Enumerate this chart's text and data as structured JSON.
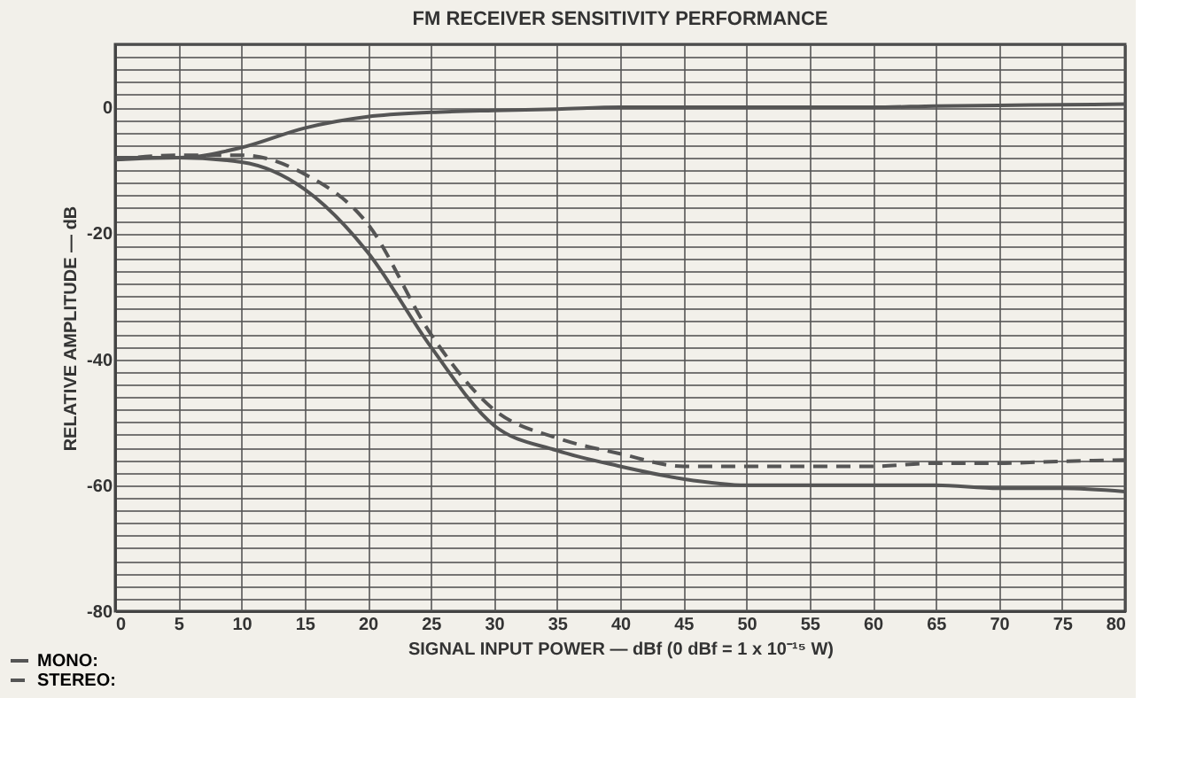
{
  "chart_data": {
    "type": "line",
    "title": "FM RECEIVER SENSITIVITY PERFORMANCE",
    "xlabel": "SIGNAL INPUT POWER — dBf (0 dBf = 1 x 10⁻¹⁵ W)",
    "ylabel": "RELATIVE AMPLITUDE — dB",
    "x": [
      0,
      5,
      10,
      15,
      20,
      25,
      30,
      35,
      40,
      45,
      50,
      55,
      60,
      65,
      70,
      75,
      80
    ],
    "series": [
      {
        "color": "#555555",
        "line_style": "solid",
        "values": [
          -8,
          -8,
          -6.4,
          -3.3,
          -1.5,
          -0.8,
          -0.5,
          -0.3,
          0,
          0,
          0,
          0,
          0,
          0.2,
          0.3,
          0.4,
          0.5
        ]
      },
      {
        "name": "MONO:",
        "color": "#555555",
        "line_style": "solid",
        "values": [
          -8.3,
          -8,
          -8.7,
          -13,
          -23,
          -38,
          -50.5,
          -54.5,
          -57,
          -59,
          -60,
          -60,
          -60,
          -60,
          -60.5,
          -60.5,
          -61
        ]
      },
      {
        "name": "STEREO:",
        "color": "#555555",
        "line_style": "dashed",
        "values": [
          -8.3,
          -7.6,
          -7.6,
          -10.6,
          -18.5,
          -36,
          -48,
          -52.5,
          -55,
          -57,
          -57,
          -57,
          -57,
          -56.5,
          -56.5,
          -56.2,
          -56
        ]
      }
    ],
    "xlim": [
      0,
      80
    ],
    "xticks": [
      0,
      5,
      10,
      15,
      20,
      25,
      30,
      35,
      40,
      45,
      50,
      55,
      60,
      65,
      70,
      75,
      80
    ],
    "ylim": [
      -80,
      10
    ],
    "yticks": [
      -80,
      {
        "value": -78,
        "label": null
      },
      {
        "value": -76,
        "label": null
      },
      {
        "value": -74,
        "label": null
      },
      {
        "value": -72,
        "label": null
      },
      {
        "value": -70,
        "label": null
      },
      {
        "value": -68,
        "label": null
      },
      {
        "value": -66,
        "label": null
      },
      {
        "value": -64,
        "label": null
      },
      {
        "value": -62,
        "label": null
      },
      -60,
      {
        "value": -58,
        "label": null
      },
      {
        "value": -56,
        "label": null
      },
      {
        "value": -54,
        "label": null
      },
      {
        "value": -52,
        "label": null
      },
      {
        "value": -50,
        "label": null
      },
      {
        "value": -48,
        "label": null
      },
      {
        "value": -46,
        "label": null
      },
      {
        "value": -44,
        "label": null
      },
      {
        "value": -42,
        "label": null
      },
      -40,
      {
        "value": -38,
        "label": null
      },
      {
        "value": -36,
        "label": null
      },
      {
        "value": -34,
        "label": null
      },
      {
        "value": -32,
        "label": null
      },
      {
        "value": -30,
        "label": null
      },
      {
        "value": -28,
        "label": null
      },
      {
        "value": -26,
        "label": null
      },
      {
        "value": -24,
        "label": null
      },
      {
        "value": -22,
        "label": null
      },
      -20,
      {
        "value": -18,
        "label": null
      },
      {
        "value": -16,
        "label": null
      },
      {
        "value": -14,
        "label": null
      },
      {
        "value": -12,
        "label": null
      },
      {
        "value": -10,
        "label": null
      },
      {
        "value": -8,
        "label": null
      },
      {
        "value": -6,
        "label": null
      },
      {
        "value": -4,
        "label": null
      },
      {
        "value": -2,
        "label": null
      },
      0,
      {
        "value": 2,
        "label": null
      },
      {
        "value": 4,
        "label": null
      },
      {
        "value": 6,
        "label": null
      },
      {
        "value": 8,
        "label": null
      },
      {
        "value": 10,
        "label": null
      }
    ],
    "grid": true,
    "legend": "bottom left",
    "marker": "none"
  }
}
